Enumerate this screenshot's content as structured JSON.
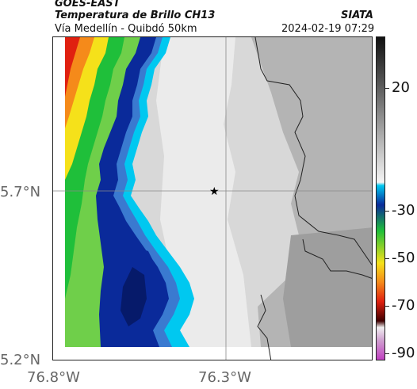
{
  "header": {
    "satellite": "GOES-EAST",
    "product": "Temperatura de Brillo CH13",
    "agency": "SIATA",
    "route": "Vía Medellín - Quibdó 50km",
    "timestamp": "2024-02-19 07:29"
  },
  "map": {
    "lat_labels": [
      "5.7°N",
      "5.2°N"
    ],
    "lon_labels": [
      "76.8°W",
      "76.3°W"
    ],
    "marker": "star-marker"
  },
  "colorbar": {
    "tick_labels": [
      "20",
      "-30",
      "-50",
      "-70",
      "-90"
    ],
    "colors": {
      "warm_low": "#f4f4f4",
      "warm_high": "#111111",
      "cyan": "#00c8f0",
      "blue": "#0a2a9a",
      "green": "#1fbf3a",
      "yellow": "#f5e11a",
      "orange": "#f58a1a",
      "red": "#e02010",
      "magenta": "#c040c0"
    }
  }
}
